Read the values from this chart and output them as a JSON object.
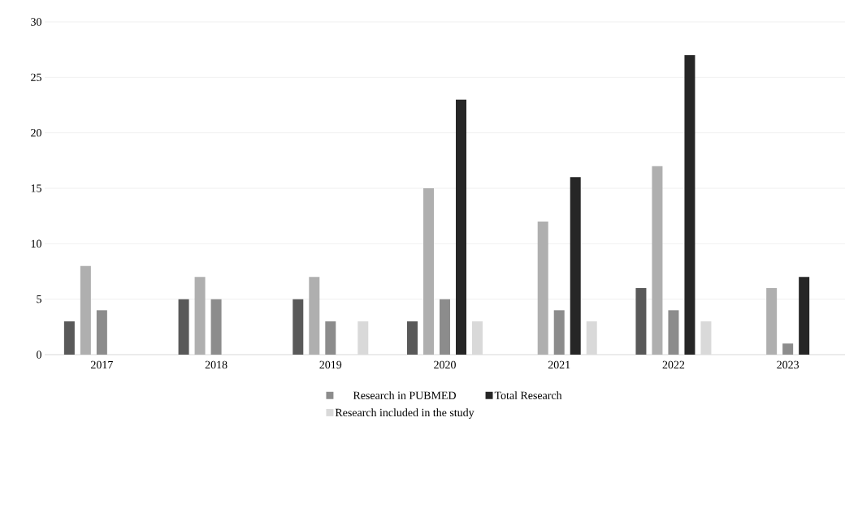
{
  "chart_data": {
    "type": "bar",
    "categories": [
      "2017",
      "2018",
      "2019",
      "2020",
      "2021",
      "2022",
      "2023"
    ],
    "series": [
      {
        "color": "#595959",
        "values": [
          3,
          5,
          5,
          3,
          0,
          6,
          0
        ]
      },
      {
        "color": "#afafaf",
        "values": [
          8,
          7,
          7,
          15,
          12,
          17,
          6
        ]
      },
      {
        "name": "Research in PUBMED",
        "color": "#8c8c8c",
        "values": [
          4,
          5,
          3,
          5,
          4,
          4,
          1
        ]
      },
      {
        "name": "Total Research",
        "color": "#262626",
        "values": [
          0,
          0,
          0,
          23,
          16,
          27,
          7
        ]
      },
      {
        "name": "Research included in the study",
        "color": "#d9d9d9",
        "values": [
          0,
          0,
          3,
          3,
          3,
          3,
          0
        ]
      }
    ],
    "ylim": [
      0,
      30
    ],
    "yticks": [
      0,
      5,
      10,
      15,
      20,
      25,
      30
    ],
    "grid": "y",
    "legend": "bottom"
  }
}
